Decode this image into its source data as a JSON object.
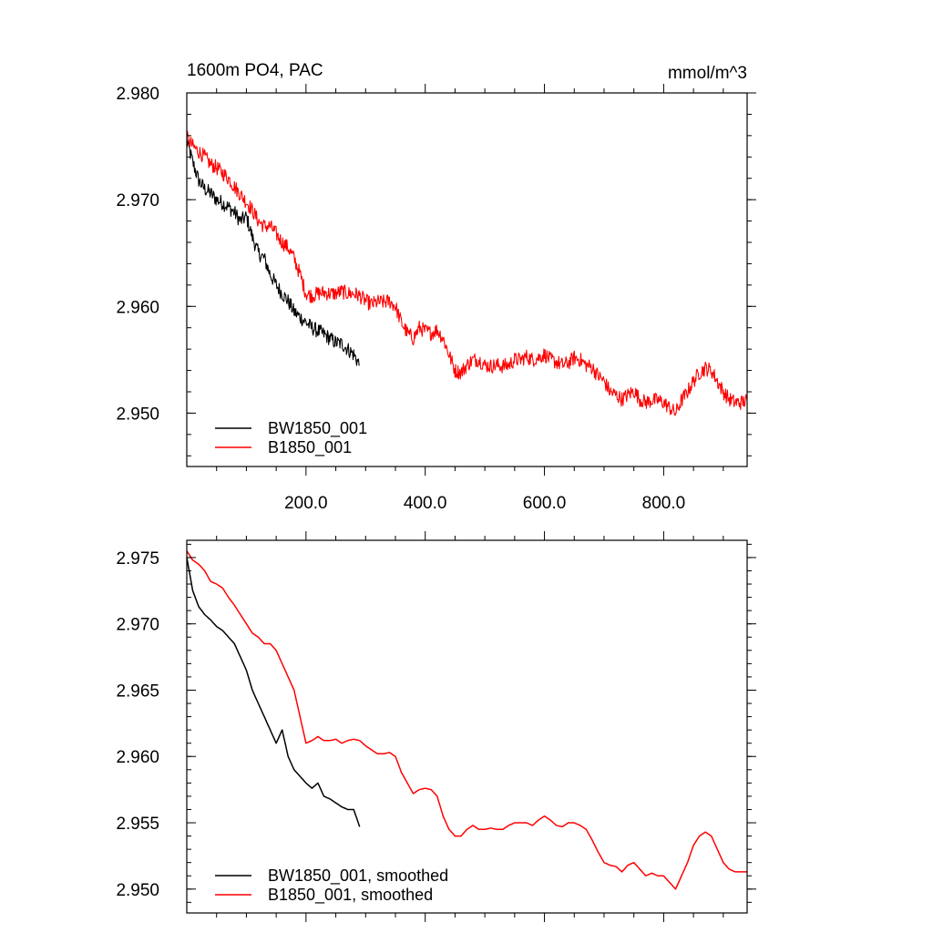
{
  "chart_data": [
    {
      "type": "line",
      "title": "1600m PO4, PAC",
      "units_label": "mmol/m^3",
      "xlabel": "",
      "ylabel": "",
      "xlim": [
        0,
        940
      ],
      "ylim": [
        2.945,
        2.98
      ],
      "x_tick_labels": [
        "200.0",
        "400.0",
        "600.0",
        "800.0"
      ],
      "x_ticks": [
        200,
        400,
        600,
        800
      ],
      "y_tick_labels": [
        "2.950",
        "2.960",
        "2.970",
        "2.980"
      ],
      "y_ticks": [
        2.95,
        2.96,
        2.97,
        2.98
      ],
      "legend_position": "bottom-left",
      "noisy": true,
      "series": [
        {
          "name": "BW1850_001",
          "color": "#000000",
          "x": [
            0,
            10,
            20,
            30,
            40,
            50,
            60,
            70,
            80,
            90,
            100,
            110,
            120,
            130,
            140,
            150,
            160,
            170,
            180,
            190,
            200,
            210,
            220,
            230,
            240,
            250,
            260,
            270,
            280,
            290
          ],
          "y": [
            2.9755,
            2.9735,
            2.9718,
            2.971,
            2.9706,
            2.97,
            2.9697,
            2.9693,
            2.9688,
            2.968,
            2.9684,
            2.9665,
            2.965,
            2.9645,
            2.963,
            2.962,
            2.9612,
            2.9605,
            2.9595,
            2.959,
            2.9585,
            2.958,
            2.9577,
            2.9574,
            2.957,
            2.9566,
            2.9565,
            2.956,
            2.9555,
            2.9545
          ]
        },
        {
          "name": "B1850_001",
          "color": "#ff0000",
          "x": [
            0,
            10,
            20,
            30,
            40,
            50,
            60,
            70,
            80,
            90,
            100,
            110,
            120,
            130,
            140,
            150,
            160,
            170,
            180,
            190,
            200,
            210,
            220,
            230,
            240,
            250,
            260,
            270,
            280,
            290,
            300,
            310,
            320,
            330,
            340,
            350,
            360,
            370,
            380,
            390,
            400,
            410,
            420,
            430,
            440,
            450,
            460,
            470,
            480,
            490,
            500,
            510,
            520,
            530,
            540,
            550,
            560,
            570,
            580,
            590,
            600,
            610,
            620,
            630,
            640,
            650,
            660,
            670,
            680,
            690,
            700,
            710,
            720,
            730,
            740,
            750,
            760,
            770,
            780,
            790,
            800,
            810,
            820,
            830,
            840,
            850,
            860,
            870,
            880,
            890,
            900,
            910,
            920,
            930,
            940
          ],
          "y": [
            2.9758,
            2.975,
            2.9745,
            2.974,
            2.9733,
            2.973,
            2.9725,
            2.972,
            2.9712,
            2.9705,
            2.9698,
            2.969,
            2.968,
            2.9675,
            2.9675,
            2.9668,
            2.966,
            2.9655,
            2.9645,
            2.963,
            2.9612,
            2.961,
            2.9612,
            2.9613,
            2.9612,
            2.9612,
            2.9614,
            2.9612,
            2.9612,
            2.961,
            2.9605,
            2.9602,
            2.9604,
            2.9604,
            2.9605,
            2.96,
            2.9585,
            2.9575,
            2.957,
            2.958,
            2.9577,
            2.9575,
            2.9578,
            2.957,
            2.9555,
            2.954,
            2.9538,
            2.9545,
            2.955,
            2.955,
            2.9545,
            2.9544,
            2.9545,
            2.9544,
            2.9545,
            2.955,
            2.955,
            2.9553,
            2.955,
            2.9552,
            2.9555,
            2.955,
            2.9548,
            2.9545,
            2.9547,
            2.9552,
            2.955,
            2.9545,
            2.9543,
            2.9535,
            2.953,
            2.952,
            2.9517,
            2.9513,
            2.9517,
            2.9521,
            2.9513,
            2.951,
            2.9512,
            2.9512,
            2.951,
            2.9505,
            2.95,
            2.9512,
            2.952,
            2.953,
            2.9538,
            2.9542,
            2.954,
            2.953,
            2.952,
            2.9513,
            2.951,
            2.951,
            2.9512
          ]
        }
      ]
    },
    {
      "type": "line",
      "title": "",
      "xlabel": "",
      "ylabel": "",
      "xlim": [
        0,
        940
      ],
      "ylim": [
        2.9482,
        2.9763
      ],
      "x_ticks": [
        200,
        400,
        600,
        800
      ],
      "x_tick_labels": [],
      "y_tick_labels": [
        "2.950",
        "2.955",
        "2.960",
        "2.965",
        "2.970",
        "2.975"
      ],
      "y_ticks": [
        2.95,
        2.955,
        2.96,
        2.965,
        2.97,
        2.975
      ],
      "legend_position": "bottom-left",
      "noisy": false,
      "series": [
        {
          "name": "BW1850_001, smoothed",
          "color": "#000000",
          "x": [
            0,
            10,
            20,
            30,
            40,
            50,
            60,
            70,
            80,
            90,
            100,
            110,
            120,
            130,
            140,
            150,
            160,
            170,
            180,
            190,
            200,
            210,
            220,
            230,
            240,
            250,
            260,
            270,
            280,
            290
          ],
          "y": [
            2.975,
            2.9725,
            2.9713,
            2.9707,
            2.9703,
            2.9698,
            2.9695,
            2.969,
            2.9685,
            2.9675,
            2.9665,
            2.965,
            2.964,
            2.963,
            2.962,
            2.961,
            2.962,
            2.96,
            2.959,
            2.9585,
            2.958,
            2.9576,
            2.958,
            2.957,
            2.9568,
            2.9565,
            2.9562,
            2.956,
            2.956,
            2.9547
          ]
        },
        {
          "name": "B1850_001, smoothed",
          "color": "#ff0000",
          "x": [
            0,
            10,
            20,
            30,
            40,
            50,
            60,
            70,
            80,
            90,
            100,
            110,
            120,
            130,
            140,
            150,
            160,
            170,
            180,
            190,
            200,
            210,
            220,
            230,
            240,
            250,
            260,
            270,
            280,
            290,
            300,
            310,
            320,
            330,
            340,
            350,
            360,
            370,
            380,
            390,
            400,
            410,
            420,
            430,
            440,
            450,
            460,
            470,
            480,
            490,
            500,
            510,
            520,
            530,
            540,
            550,
            560,
            570,
            580,
            590,
            600,
            610,
            620,
            630,
            640,
            650,
            660,
            670,
            680,
            690,
            700,
            710,
            720,
            730,
            740,
            750,
            760,
            770,
            780,
            790,
            800,
            810,
            820,
            830,
            840,
            850,
            860,
            870,
            880,
            890,
            900,
            910,
            920,
            930,
            940
          ],
          "y": [
            2.9755,
            2.9748,
            2.9745,
            2.974,
            2.9732,
            2.973,
            2.9727,
            2.972,
            2.9714,
            2.9707,
            2.97,
            2.9693,
            2.969,
            2.9685,
            2.9685,
            2.968,
            2.967,
            2.966,
            2.965,
            2.963,
            2.961,
            2.9612,
            2.9615,
            2.9612,
            2.9612,
            2.9613,
            2.961,
            2.9612,
            2.9613,
            2.9612,
            2.9608,
            2.9605,
            2.9602,
            2.9602,
            2.9603,
            2.96,
            2.9588,
            2.958,
            2.9572,
            2.9575,
            2.9576,
            2.9575,
            2.957,
            2.9555,
            2.9545,
            2.954,
            2.954,
            2.9545,
            2.9548,
            2.9545,
            2.9545,
            2.9546,
            2.9545,
            2.9545,
            2.9548,
            2.955,
            2.955,
            2.955,
            2.9548,
            2.9552,
            2.9555,
            2.9552,
            2.9548,
            2.9547,
            2.955,
            2.955,
            2.9548,
            2.9545,
            2.9537,
            2.9528,
            2.952,
            2.9518,
            2.9517,
            2.9513,
            2.9518,
            2.952,
            2.9515,
            2.951,
            2.9512,
            2.951,
            2.951,
            2.9505,
            2.95,
            2.951,
            2.952,
            2.9533,
            2.954,
            2.9543,
            2.954,
            2.953,
            2.952,
            2.9515,
            2.9513,
            2.9513,
            2.9513
          ]
        }
      ]
    }
  ]
}
